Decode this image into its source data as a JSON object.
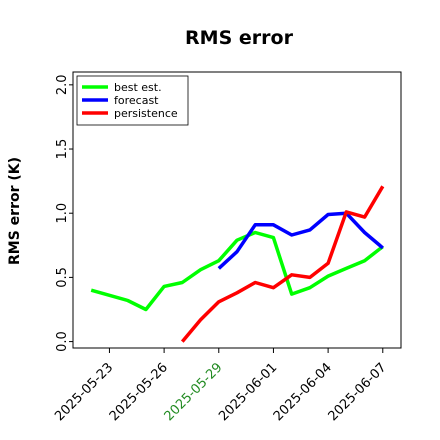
{
  "chart_data": {
    "type": "line",
    "title": "RMS error",
    "ylabel": "RMS error (K)",
    "xlabel": "",
    "ylim": [
      -0.05,
      2.1
    ],
    "xlim": [
      "2025-05-21",
      "2025-06-08"
    ],
    "yticks": [
      0.0,
      0.5,
      1.0,
      1.5,
      2.0
    ],
    "ytick_labels": [
      "0.0",
      "0.5",
      "1.0",
      "1.5",
      "2.0"
    ],
    "xticks": [
      {
        "date": "2025-05-23",
        "label": "2025-05-23",
        "color": "#000000"
      },
      {
        "date": "2025-05-26",
        "label": "2025-05-26",
        "color": "#000000"
      },
      {
        "date": "2025-05-29",
        "label": "2025-05-29",
        "color": "#228b22"
      },
      {
        "date": "2025-06-01",
        "label": "2025-06-01",
        "color": "#000000"
      },
      {
        "date": "2025-06-04",
        "label": "2025-06-04",
        "color": "#000000"
      },
      {
        "date": "2025-06-07",
        "label": "2025-06-07",
        "color": "#000000"
      }
    ],
    "legend_position": "top-left",
    "grid": false,
    "series": [
      {
        "name": "best est.",
        "color": "#00ff00",
        "x": [
          "2025-05-22",
          "2025-05-24",
          "2025-05-25",
          "2025-05-26",
          "2025-05-27",
          "2025-05-28",
          "2025-05-29",
          "2025-05-30",
          "2025-05-31",
          "2025-06-01",
          "2025-06-02",
          "2025-06-03",
          "2025-06-04",
          "2025-06-05",
          "2025-06-06",
          "2025-06-07"
        ],
        "y": [
          0.4,
          0.32,
          0.25,
          0.43,
          0.46,
          0.56,
          0.63,
          0.79,
          0.85,
          0.81,
          0.37,
          0.42,
          0.51,
          0.57,
          0.63,
          0.74
        ]
      },
      {
        "name": "forecast",
        "color": "#0000ff",
        "x": [
          "2025-05-29",
          "2025-05-30",
          "2025-05-31",
          "2025-06-01",
          "2025-06-02",
          "2025-06-03",
          "2025-06-04",
          "2025-06-05",
          "2025-06-06",
          "2025-06-07"
        ],
        "y": [
          0.57,
          0.7,
          0.91,
          0.91,
          0.83,
          0.87,
          0.99,
          1.0,
          0.85,
          0.73
        ]
      },
      {
        "name": "persistence",
        "color": "#ff0000",
        "x": [
          "2025-05-27",
          "2025-05-28",
          "2025-05-29",
          "2025-05-30",
          "2025-05-31",
          "2025-06-01",
          "2025-06-02",
          "2025-06-03",
          "2025-06-04",
          "2025-06-05",
          "2025-06-06",
          "2025-06-07"
        ],
        "y": [
          0.0,
          0.17,
          0.31,
          0.38,
          0.46,
          0.42,
          0.52,
          0.5,
          0.61,
          1.01,
          0.97,
          1.21
        ]
      }
    ]
  }
}
